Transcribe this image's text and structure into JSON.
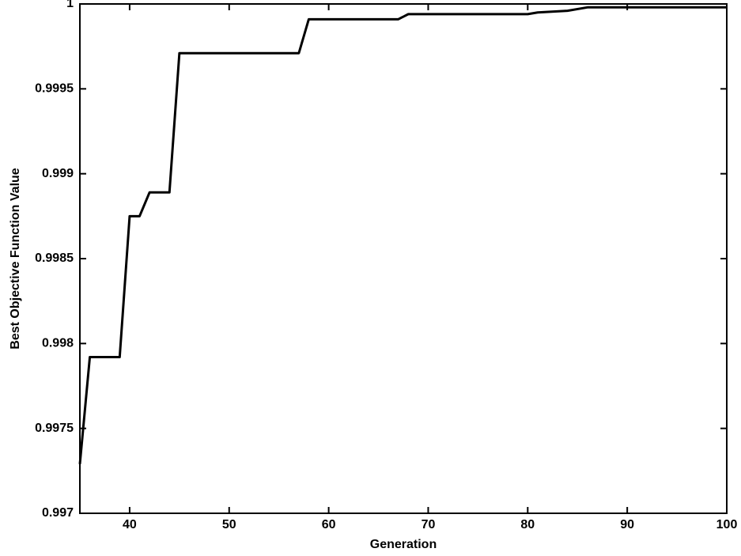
{
  "chart_data": {
    "type": "line",
    "x_label": "Generation",
    "y_label": "Best Objective Function Value",
    "x": [
      35,
      36,
      39,
      40,
      41,
      42,
      44,
      45,
      57,
      58,
      67,
      68,
      80,
      81,
      84,
      86,
      100
    ],
    "values": [
      0.99729,
      0.99792,
      0.99792,
      0.99875,
      0.99875,
      0.99889,
      0.99889,
      0.99971,
      0.99971,
      0.99991,
      0.99991,
      0.99994,
      0.99994,
      0.99995,
      0.99996,
      0.99998,
      0.99998
    ],
    "color": "#000000",
    "xlim": [
      35,
      100
    ],
    "xticks": [
      40,
      50,
      60,
      70,
      80,
      90,
      100
    ],
    "ylim": [
      0.997,
      1
    ],
    "yticks": [
      0.997,
      0.9975,
      0.998,
      0.9985,
      0.999,
      0.9995,
      1
    ],
    "grid": false
  }
}
